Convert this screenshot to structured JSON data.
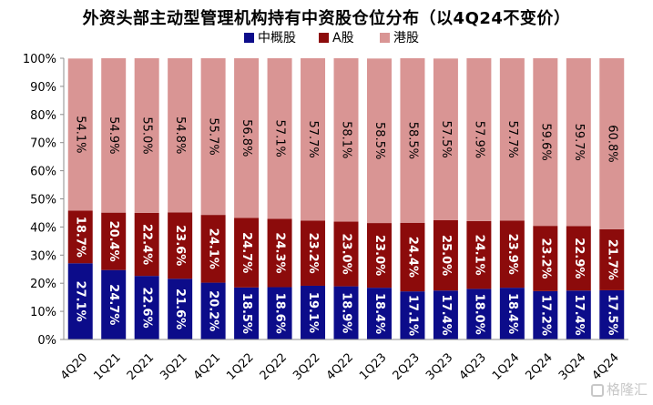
{
  "chart_data": {
    "type": "bar",
    "stacked": true,
    "title": "外资头部主动型管理机构持有中资股仓位分布（以4Q24不变价）",
    "categories": [
      "4Q20",
      "1Q21",
      "2Q21",
      "3Q21",
      "4Q21",
      "1Q22",
      "2Q22",
      "3Q22",
      "4Q22",
      "1Q23",
      "2Q23",
      "3Q23",
      "4Q23",
      "1Q24",
      "2Q24",
      "3Q24",
      "4Q24"
    ],
    "series": [
      {
        "name": "中概股",
        "color": "#0c0c8a",
        "values": [
          27.1,
          24.7,
          22.6,
          21.6,
          20.2,
          18.5,
          18.6,
          19.1,
          18.9,
          18.4,
          17.1,
          17.4,
          18.0,
          18.4,
          17.2,
          17.4,
          17.5
        ],
        "labels": [
          "27.1%",
          "24.7%",
          "22.6%",
          "21.6%",
          "20.2%",
          "18.5%",
          "18.6%",
          "19.1%",
          "18.9%",
          "18.4%",
          "17.1%",
          "17.4%",
          "18.0%",
          "18.4%",
          "17.2%",
          "17.4%",
          "17.5%"
        ]
      },
      {
        "name": "A股",
        "color": "#8c0b0b",
        "values": [
          18.7,
          20.4,
          22.4,
          23.6,
          24.1,
          24.7,
          24.3,
          23.2,
          23.0,
          23.0,
          24.4,
          25.0,
          24.1,
          23.9,
          23.2,
          22.9,
          21.7
        ],
        "labels": [
          "18.7%",
          "20.4%",
          "22.4%",
          "23.6%",
          "24.1%",
          "24.7%",
          "24.3%",
          "23.2%",
          "23.0%",
          "23.0%",
          "24.4%",
          "25.0%",
          "24.1%",
          "23.9%",
          "23.2%",
          "22.9%",
          "21.7%"
        ]
      },
      {
        "name": "港股",
        "color": "#d99594",
        "values": [
          54.1,
          54.9,
          55.0,
          54.8,
          55.7,
          56.8,
          57.1,
          57.7,
          58.1,
          58.5,
          58.5,
          57.5,
          57.9,
          57.7,
          59.6,
          59.7,
          60.8
        ],
        "labels": [
          "54.1%",
          "54.9%",
          "55.0%",
          "54.8%",
          "55.7%",
          "56.8%",
          "57.1%",
          "57.7%",
          "58.1%",
          "58.5%",
          "58.5%",
          "57.5%",
          "57.9%",
          "57.7%",
          "59.6%",
          "59.7%",
          "60.8%"
        ]
      }
    ],
    "ylim": [
      0,
      100
    ],
    "yticks": [
      "0%",
      "10%",
      "20%",
      "30%",
      "40%",
      "50%",
      "60%",
      "70%",
      "80%",
      "90%",
      "100%"
    ],
    "xlabel": "",
    "ylabel": "",
    "legend_position": "top",
    "grid": false,
    "colors": {
      "axis": "#8c8c8c",
      "label_light": "#ffffff",
      "label_dark": "#000000"
    }
  },
  "watermark": {
    "text": "格隆汇"
  }
}
